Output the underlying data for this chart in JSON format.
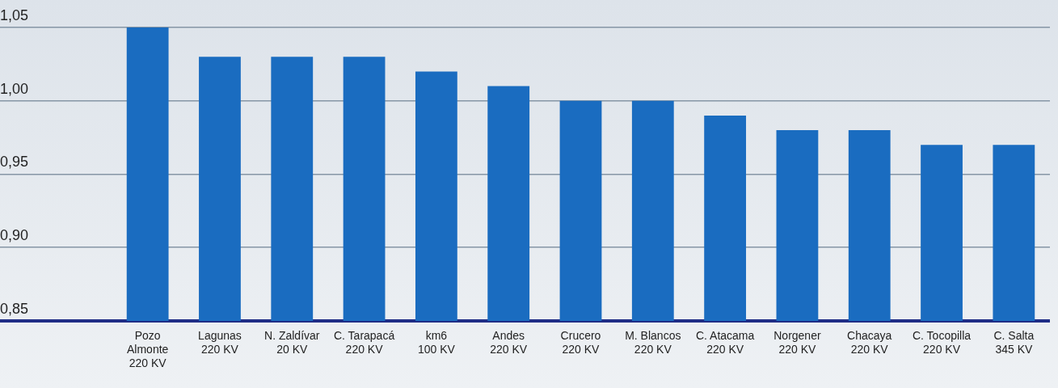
{
  "chart_data": {
    "type": "bar",
    "categories": [
      "Pozo\nAlmonte\n220 KV",
      "Lagunas\n220 KV",
      "N. Zaldívar\n20 KV",
      "C. Tarapacá\n220 KV",
      "km6\n100 KV",
      "Andes\n220 KV",
      "Crucero\n220 KV",
      "M. Blancos\n220 KV",
      "C. Atacama\n220 KV",
      "Norgener\n220 KV",
      "Chacaya\n220 KV",
      "C. Tocopilla\n220 KV",
      "C. Salta\n345 KV"
    ],
    "values": [
      1.05,
      1.03,
      1.03,
      1.03,
      1.02,
      1.01,
      1.0,
      1.0,
      0.99,
      0.98,
      0.98,
      0.97,
      0.97
    ],
    "color": "#1a6cc0",
    "ylim": [
      0.85,
      1.05
    ],
    "yticks": [
      {
        "value": 0.85,
        "label": "0,85"
      },
      {
        "value": 0.9,
        "label": "0,90"
      },
      {
        "value": 0.95,
        "label": "0,95"
      },
      {
        "value": 1.0,
        "label": "1,00"
      },
      {
        "value": 1.05,
        "label": "1,05"
      }
    ],
    "grid": "y",
    "legend": false
  }
}
